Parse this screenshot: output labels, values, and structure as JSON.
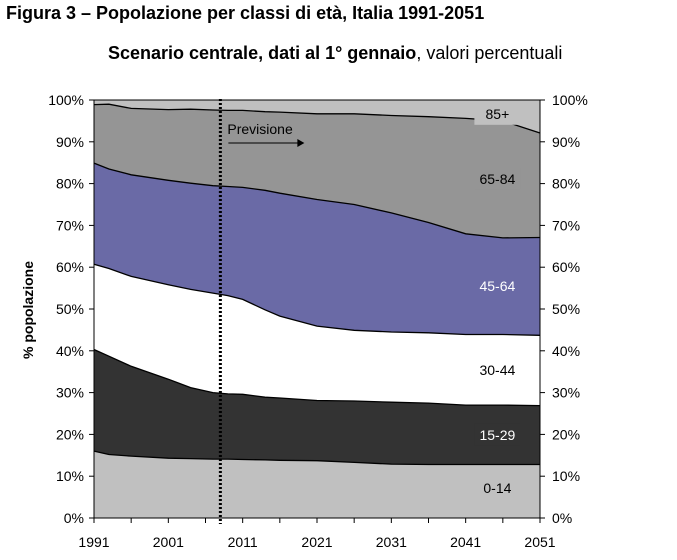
{
  "title": {
    "line1": "Figura 3 – Popolazione per classi di età, Italia 1991-2051",
    "line2_bold": "Scenario centrale, dati al 1° gennaio",
    "line2_rest": ", valori percentuali"
  },
  "chart_data": {
    "type": "area",
    "stacked": true,
    "ylabel": "% popolazione",
    "xlabel": "",
    "x": [
      1991,
      1993,
      1996,
      2001,
      2004,
      2007,
      2009,
      2011,
      2014,
      2016,
      2021,
      2026,
      2031,
      2036,
      2041,
      2046,
      2051
    ],
    "xticks": [
      1991,
      2001,
      2011,
      2021,
      2031,
      2041,
      2051
    ],
    "yticks": [
      "0%",
      "10%",
      "20%",
      "30%",
      "40%",
      "50%",
      "60%",
      "70%",
      "80%",
      "90%",
      "100%"
    ],
    "ylim": [
      0,
      100
    ],
    "series": [
      {
        "name": "0-14",
        "color": "#c0c0c0",
        "label_color": "#000000",
        "values": [
          16,
          15.2,
          14.8,
          14.3,
          14.2,
          14.1,
          14.1,
          14.0,
          13.9,
          13.8,
          13.7,
          13.3,
          12.9,
          12.8,
          12.8,
          12.8,
          12.8
        ]
      },
      {
        "name": "15-29",
        "color": "#333333",
        "label_color": "#ffffff",
        "values": [
          24.3,
          23.5,
          21.5,
          18.9,
          17.0,
          15.9,
          15.6,
          15.6,
          15.0,
          14.9,
          14.4,
          14.7,
          14.8,
          14.7,
          14.2,
          14.2,
          14.1
        ]
      },
      {
        "name": "30-44",
        "color": "#ffffff",
        "label_color": "#000000",
        "values": [
          20.4,
          21.0,
          21.5,
          22.6,
          23.5,
          23.8,
          23.5,
          22.7,
          20.9,
          19.6,
          17.8,
          16.9,
          16.8,
          16.8,
          16.9,
          16.9,
          16.8
        ]
      },
      {
        "name": "45-64",
        "color": "#6a6aa6",
        "label_color": "#ffffff",
        "values": [
          24.2,
          23.8,
          24.3,
          25.0,
          25.4,
          25.7,
          26.1,
          26.8,
          28.6,
          29.4,
          30.3,
          30.1,
          28.5,
          26.4,
          24.1,
          23.1,
          23.4
        ]
      },
      {
        "name": "65-84",
        "color": "#959595",
        "label_color": "#000000",
        "values": [
          14.0,
          15.5,
          15.9,
          16.9,
          17.7,
          18.1,
          18.2,
          18.4,
          18.8,
          19.4,
          20.5,
          21.7,
          23.3,
          25.3,
          27.6,
          28.0,
          25.0
        ]
      },
      {
        "name": "85+",
        "color": "#c0c0c0",
        "label_color": "#000000",
        "values": [
          1.1,
          1.0,
          2.0,
          2.3,
          2.2,
          2.4,
          2.5,
          2.5,
          2.8,
          2.9,
          3.3,
          3.3,
          3.7,
          4.0,
          4.4,
          5.0,
          7.9
        ]
      }
    ],
    "annotations": [
      {
        "text": "Previsione",
        "type": "vertical-dotted-line",
        "x": 2008
      }
    ],
    "legend": "inline band labels",
    "grid": false
  }
}
